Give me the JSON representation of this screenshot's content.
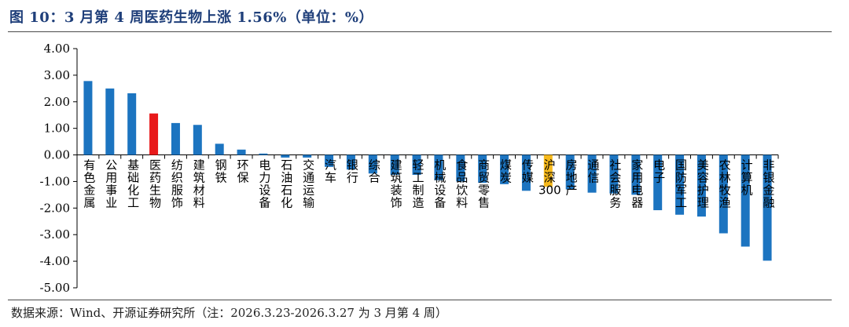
{
  "title": "图 10：3 月第 4 周医药生物上涨 1.56%（单位：%）",
  "source": "数据来源：Wind、开源证券研究所（注：2026.3.23-2026.3.27 为 3 月第 4 周）",
  "colors": {
    "default": "#1c74c0",
    "highlight": "#e8191a",
    "benchmark": "#f6b91b",
    "title": "#1f3f7a"
  },
  "chart_data": {
    "type": "bar",
    "title": "图 10：3 月第 4 周医药生物上涨 1.56%（单位：%）",
    "xlabel": "",
    "ylabel": "%",
    "ylim": [
      -5,
      4
    ],
    "yticks": [
      "4.00",
      "3.00",
      "2.00",
      "1.00",
      "0.00",
      "-1.00",
      "-2.00",
      "-3.00",
      "-4.00",
      "-5.00"
    ],
    "grid": false,
    "categories": [
      "有色金属",
      "公用事业",
      "基础化工",
      "医药生物",
      "纺织服饰",
      "建筑材料",
      "钢铁",
      "环保",
      "电力设备",
      "石油石化",
      "交通运输",
      "汽车",
      "银行",
      "综合",
      "建筑装饰",
      "轻工制造",
      "机械设备",
      "食品饮料",
      "商贸零售",
      "煤炭",
      "传媒",
      "沪深300",
      "房地产",
      "通信",
      "社会服务",
      "家用电器",
      "电子",
      "国防军工",
      "美容护理",
      "农林牧渔",
      "计算机",
      "非银金融"
    ],
    "values": [
      2.78,
      2.5,
      2.32,
      1.56,
      1.2,
      1.13,
      0.42,
      0.2,
      0.05,
      -0.1,
      -0.1,
      -0.45,
      -0.55,
      -0.7,
      -0.75,
      -0.75,
      -0.95,
      -1.0,
      -1.05,
      -1.1,
      -1.35,
      -1.2,
      -1.3,
      -1.42,
      -1.45,
      -1.5,
      -2.08,
      -2.25,
      -2.32,
      -2.95,
      -3.45,
      -3.98
    ],
    "highlight": "医药生物",
    "benchmark": "沪深300"
  }
}
